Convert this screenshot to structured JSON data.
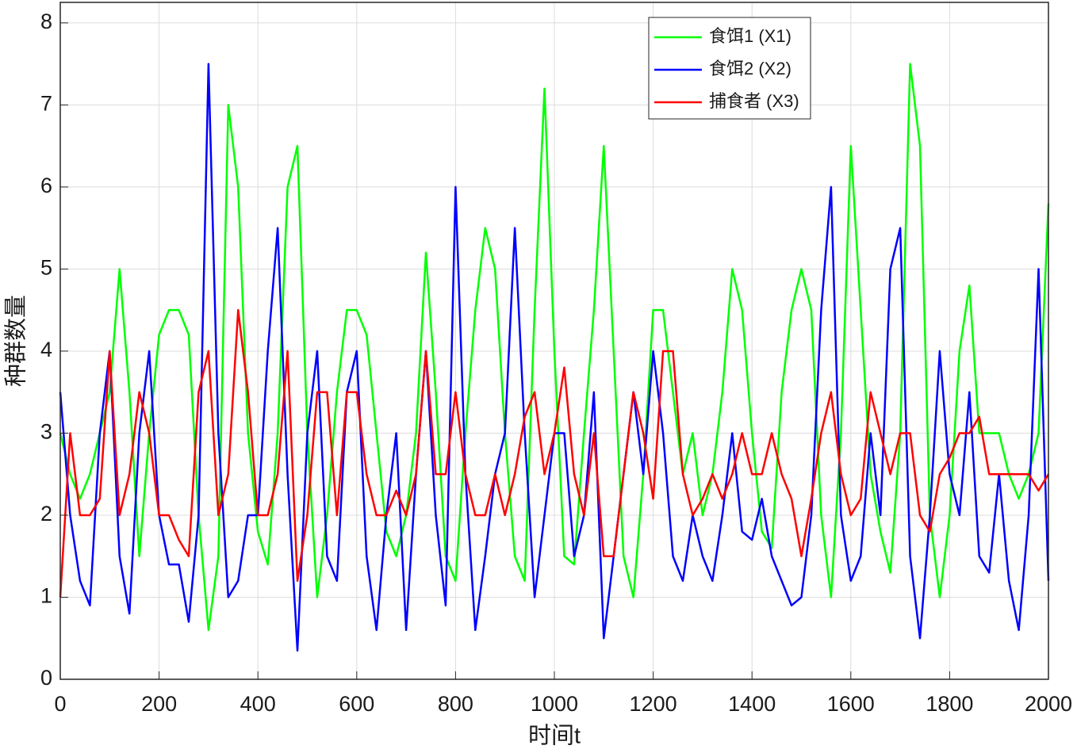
{
  "chart_data": {
    "type": "line",
    "xlabel": "时间t",
    "ylabel": "种群数量",
    "xlim": [
      0,
      2000
    ],
    "ylim": [
      0,
      8.25
    ],
    "xticks": [
      0,
      200,
      400,
      600,
      800,
      1000,
      1200,
      1400,
      1600,
      1800,
      2000
    ],
    "yticks": [
      0,
      1,
      2,
      3,
      4,
      5,
      6,
      7,
      8
    ],
    "grid": true,
    "legend": "upper right",
    "x": [
      0,
      20,
      40,
      60,
      80,
      100,
      120,
      140,
      160,
      180,
      200,
      220,
      240,
      260,
      280,
      300,
      320,
      340,
      360,
      380,
      400,
      420,
      440,
      460,
      480,
      500,
      520,
      540,
      560,
      580,
      600,
      620,
      640,
      660,
      680,
      700,
      720,
      740,
      760,
      780,
      800,
      820,
      840,
      860,
      880,
      900,
      920,
      940,
      960,
      980,
      1000,
      1020,
      1040,
      1060,
      1080,
      1100,
      1120,
      1140,
      1160,
      1180,
      1200,
      1220,
      1240,
      1260,
      1280,
      1300,
      1320,
      1340,
      1360,
      1380,
      1400,
      1420,
      1440,
      1460,
      1480,
      1500,
      1520,
      1540,
      1560,
      1580,
      1600,
      1620,
      1640,
      1660,
      1680,
      1700,
      1720,
      1740,
      1760,
      1780,
      1800,
      1820,
      1840,
      1860,
      1880,
      1900,
      1920,
      1940,
      1960,
      1980,
      2000
    ],
    "series": [
      {
        "name": "食饵1 (X1)",
        "color": "#00ff00",
        "values": [
          3,
          2.5,
          2.2,
          2.5,
          3,
          3.5,
          5,
          3.5,
          1.5,
          3,
          4.2,
          4.5,
          4.5,
          4.2,
          2,
          0.6,
          1.5,
          7,
          6,
          3,
          1.8,
          1.4,
          3,
          6,
          6.5,
          3,
          1,
          2,
          3.5,
          4.5,
          4.5,
          4.2,
          3,
          1.8,
          1.5,
          2,
          3,
          5.2,
          3.5,
          1.5,
          1.2,
          3,
          4.5,
          5.5,
          5,
          3,
          1.5,
          1.2,
          4.5,
          7.2,
          4,
          1.5,
          1.4,
          3,
          4.5,
          6.5,
          4,
          1.5,
          1,
          2.5,
          4.5,
          4.5,
          3.5,
          2.5,
          3,
          2,
          2.5,
          3.5,
          5,
          4.5,
          3,
          1.8,
          1.6,
          3.5,
          4.5,
          5,
          4.5,
          2,
          1,
          3,
          6.5,
          4.5,
          2.5,
          1.8,
          1.3,
          3,
          7.5,
          6.5,
          2,
          1,
          2,
          4,
          4.8,
          3,
          3,
          3,
          2.5,
          2.2,
          2.5,
          3,
          5.8
        ]
      },
      {
        "name": "食饵2 (X2)",
        "color": "#0000ff",
        "values": [
          3.5,
          2,
          1.2,
          0.9,
          3,
          4,
          1.5,
          0.8,
          3,
          4,
          2,
          1.4,
          1.4,
          0.7,
          2,
          7.5,
          3,
          1,
          1.2,
          2,
          2,
          4,
          5.5,
          2.5,
          0.35,
          3,
          4,
          1.5,
          1.2,
          3.5,
          4,
          1.5,
          0.6,
          2,
          3,
          0.6,
          2.5,
          4,
          2,
          0.9,
          6,
          2.5,
          0.6,
          1.5,
          2.5,
          3,
          5.5,
          3,
          1,
          2,
          3,
          3,
          1.5,
          2,
          3.5,
          0.5,
          1.5,
          2.5,
          3.5,
          2.5,
          4,
          3,
          1.5,
          1.2,
          2,
          1.5,
          1.2,
          2,
          3,
          1.8,
          1.7,
          2.2,
          1.5,
          1.2,
          0.9,
          1,
          2,
          4.5,
          6,
          2,
          1.2,
          1.5,
          3,
          2,
          5,
          5.5,
          1.5,
          0.5,
          2,
          4,
          2.5,
          2,
          3.5,
          1.5,
          1.3,
          2.5,
          1.2,
          0.6,
          2,
          5,
          1.2
        ]
      },
      {
        "name": "捕食者 (X3)",
        "color": "#ff0000",
        "values": [
          1,
          3,
          2,
          2,
          2.2,
          4,
          2,
          2.5,
          3.5,
          3,
          2,
          2,
          1.7,
          1.5,
          3.5,
          4,
          2,
          2.5,
          4.5,
          3.5,
          2,
          2,
          2.5,
          4,
          1.2,
          2,
          3.5,
          3.5,
          2,
          3.5,
          3.5,
          2.5,
          2,
          2,
          2.3,
          2,
          2.5,
          4,
          2.5,
          2.5,
          3.5,
          2.5,
          2,
          2,
          2.5,
          2,
          2.5,
          3.2,
          3.5,
          2.5,
          3,
          3.8,
          2.5,
          2,
          3,
          1.5,
          1.5,
          2.5,
          3.5,
          3,
          2.2,
          4,
          4,
          2.5,
          2,
          2.2,
          2.5,
          2.2,
          2.5,
          3,
          2.5,
          2.5,
          3,
          2.5,
          2.2,
          1.5,
          2.2,
          3,
          3.5,
          2.5,
          2,
          2.2,
          3.5,
          3,
          2.5,
          3,
          3,
          2,
          1.8,
          2.5,
          2.7,
          3,
          3,
          3.2,
          2.5,
          2.5,
          2.5,
          2.5,
          2.5,
          2.3,
          2.5
        ]
      }
    ]
  }
}
